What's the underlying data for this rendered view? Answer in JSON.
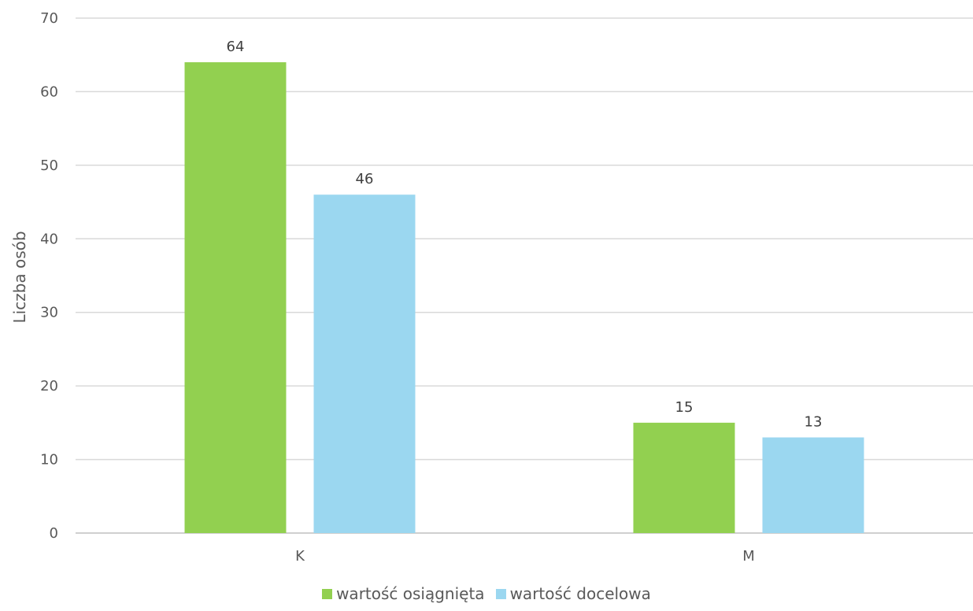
{
  "chart_data": {
    "type": "bar",
    "categories": [
      "K",
      "M"
    ],
    "series": [
      {
        "name": "wartość osiągnięta",
        "values": [
          64,
          15
        ],
        "color": "#92d050"
      },
      {
        "name": "wartość docelowa",
        "values": [
          46,
          13
        ],
        "color": "#9bd7f0"
      }
    ],
    "ylabel": "Liczba osób",
    "xlabel": "",
    "ylim": [
      0,
      70
    ],
    "yticks": [
      "0",
      "10",
      "20",
      "30",
      "40",
      "50",
      "60",
      "70"
    ],
    "grid": true,
    "legend_position": "bottom"
  }
}
